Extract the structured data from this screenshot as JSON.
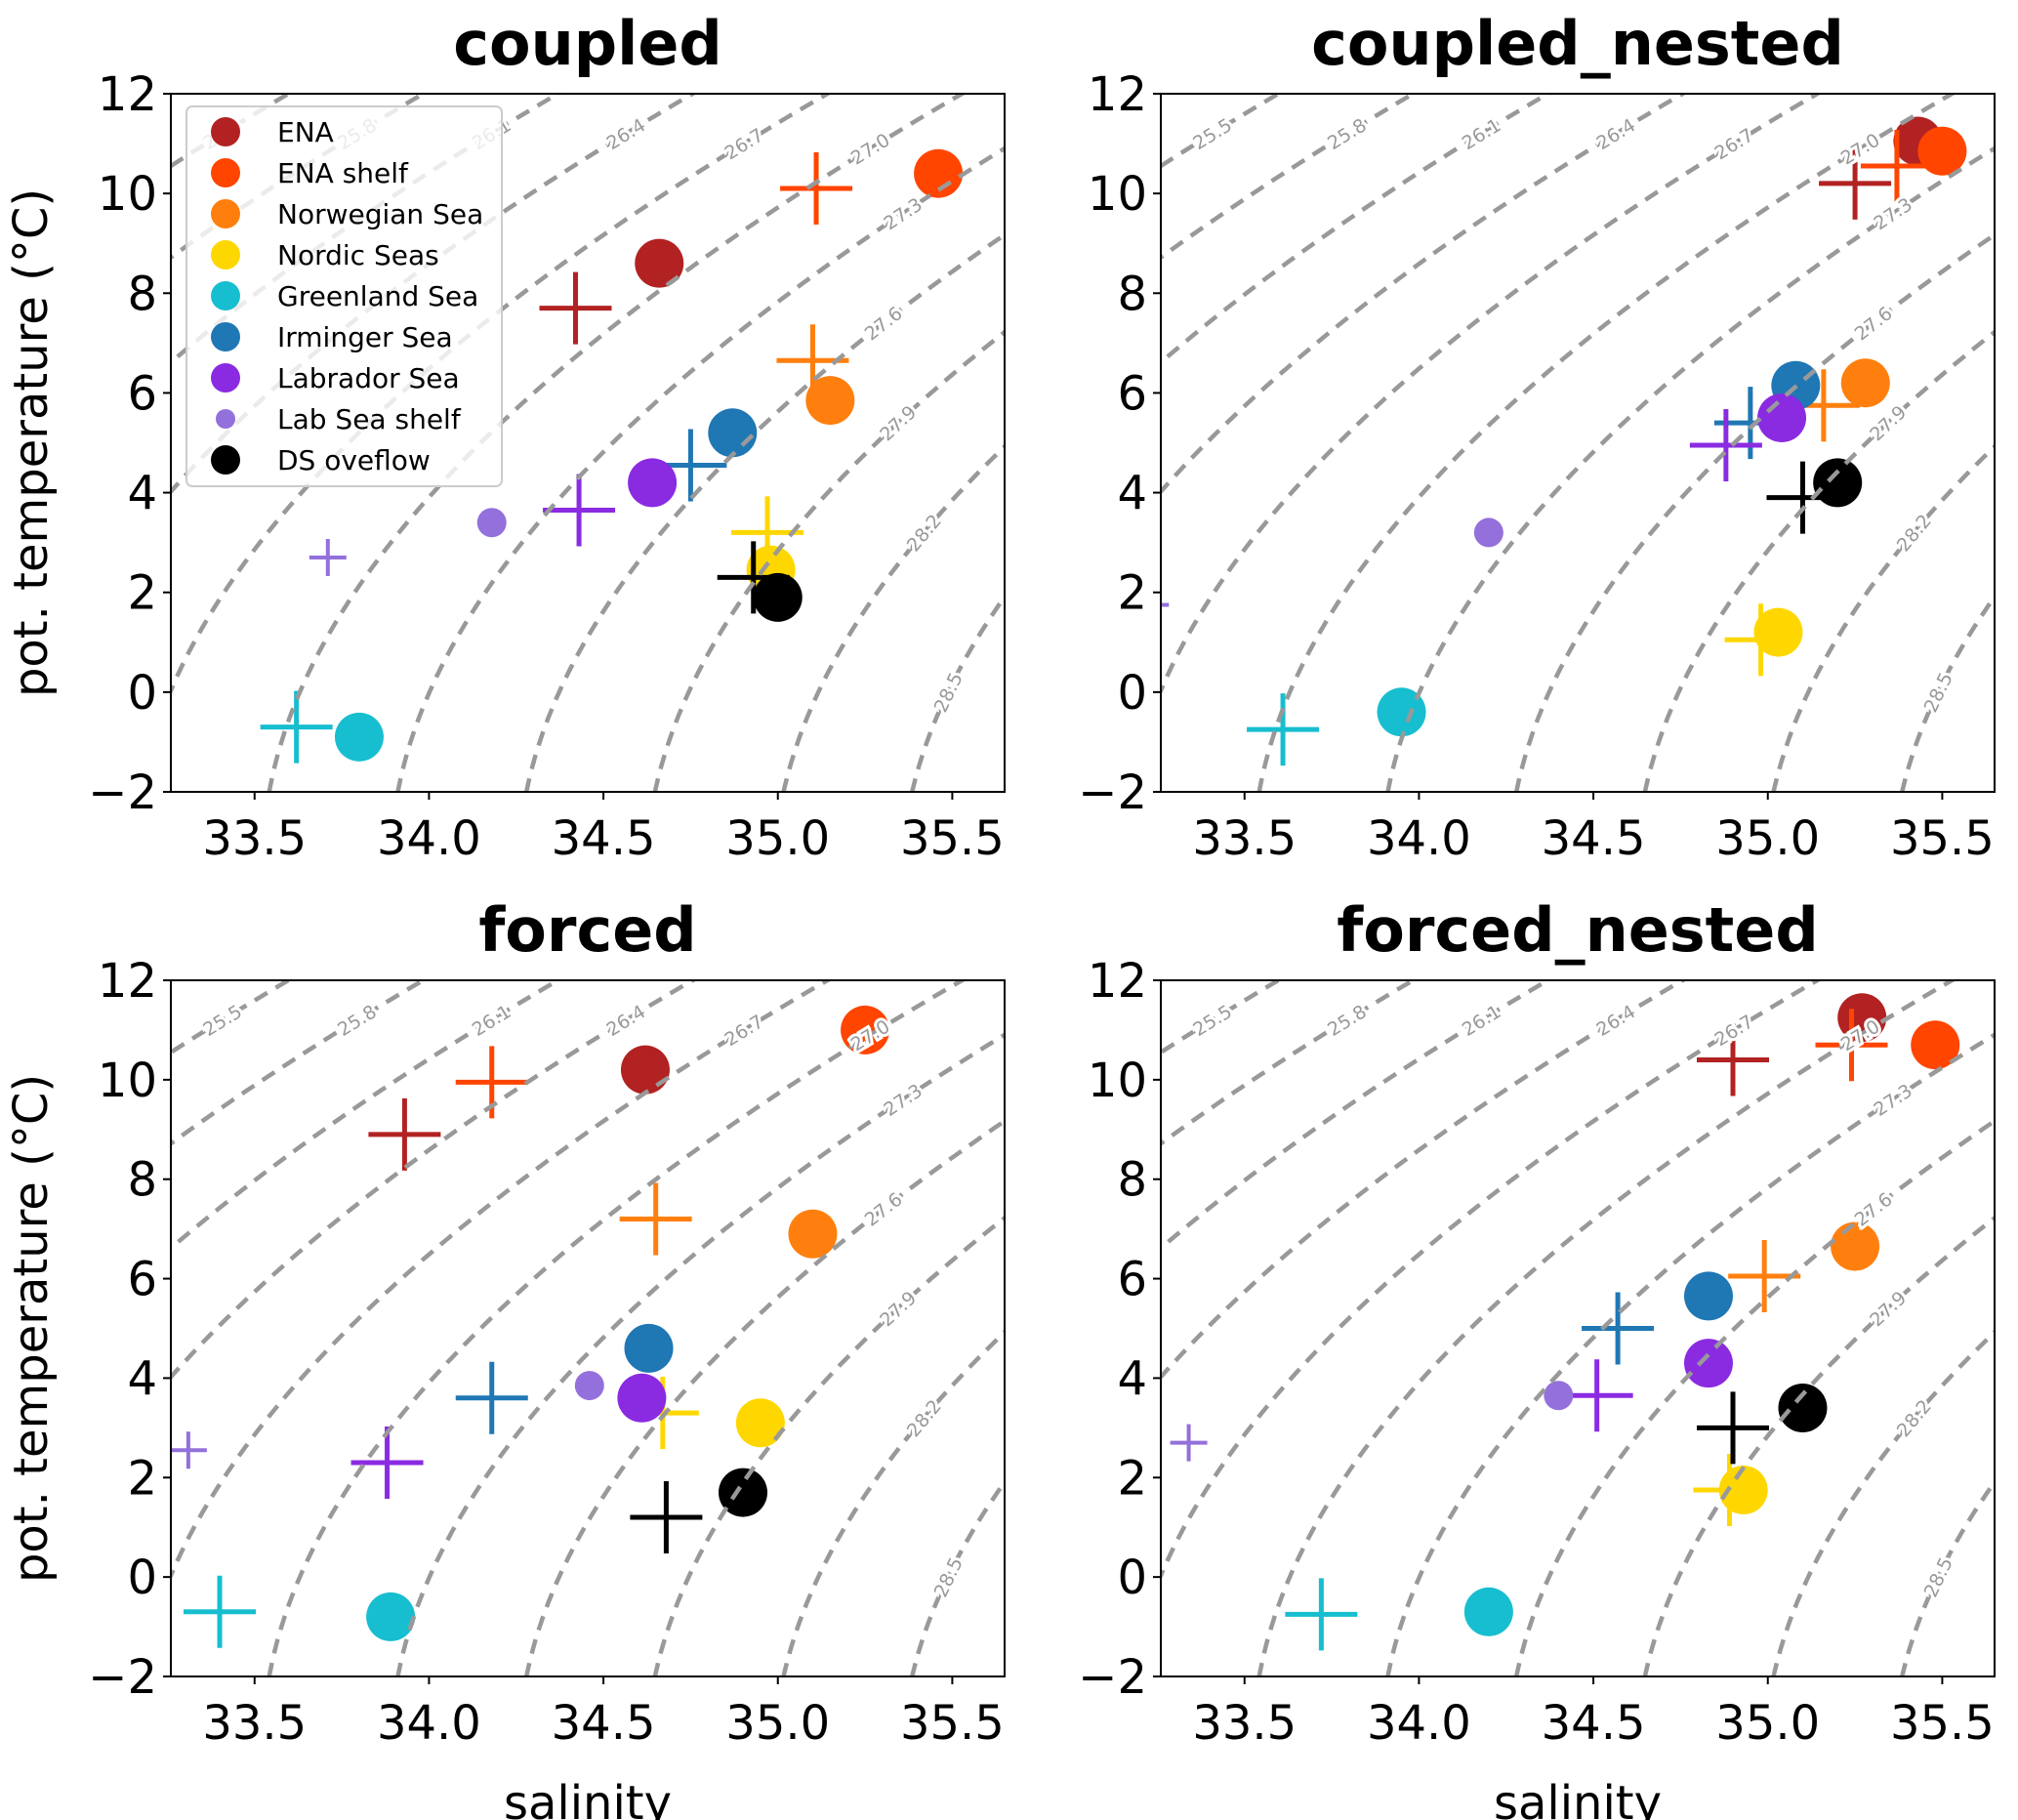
{
  "chart_data": [
    {
      "type": "scatter",
      "title": "coupled",
      "xlabel": "",
      "ylabel": "pot. temperature (°C)",
      "xlim": [
        33.26,
        35.65
      ],
      "ylim": [
        -2,
        12
      ],
      "xticks": [
        "33.5",
        "34.0",
        "34.5",
        "35.0",
        "35.5"
      ],
      "yticks": [
        "−2",
        "0",
        "2",
        "4",
        "6",
        "8",
        "10",
        "12"
      ],
      "legend": "top-left",
      "circles": [
        [
          34.66,
          8.6
        ],
        [
          35.46,
          10.4
        ],
        [
          35.15,
          5.85
        ],
        [
          34.98,
          2.45
        ],
        [
          33.8,
          -0.9
        ],
        [
          34.87,
          5.2
        ],
        [
          34.64,
          4.2
        ],
        [
          34.18,
          3.4
        ],
        [
          35.0,
          1.9
        ]
      ],
      "crosses": [
        [
          34.42,
          7.7
        ],
        [
          35.11,
          10.1
        ],
        [
          35.1,
          6.65
        ],
        [
          34.97,
          3.2
        ],
        [
          33.62,
          -0.7
        ],
        [
          34.75,
          4.55
        ],
        [
          34.43,
          3.65
        ],
        [
          33.71,
          2.7
        ],
        [
          34.93,
          2.3
        ]
      ]
    },
    {
      "type": "scatter",
      "title": "coupled_nested",
      "xlabel": "",
      "ylabel": "",
      "xlim": [
        33.26,
        35.65
      ],
      "ylim": [
        -2,
        12
      ],
      "xticks": [
        "33.5",
        "34.0",
        "34.5",
        "35.0",
        "35.5"
      ],
      "yticks": [
        "−2",
        "0",
        "2",
        "4",
        "6",
        "8",
        "10",
        "12"
      ],
      "circles": [
        [
          35.43,
          11.05
        ],
        [
          35.5,
          10.85
        ],
        [
          35.28,
          6.2
        ],
        [
          35.03,
          1.2
        ],
        [
          33.95,
          -0.4
        ],
        [
          35.08,
          6.15
        ],
        [
          35.04,
          5.5
        ],
        [
          34.2,
          3.2
        ],
        [
          35.2,
          4.2
        ]
      ],
      "crosses": [
        [
          35.25,
          10.2
        ],
        [
          35.37,
          10.55
        ],
        [
          35.16,
          5.75
        ],
        [
          34.98,
          1.05
        ],
        [
          33.61,
          -0.75
        ],
        [
          34.95,
          5.4
        ],
        [
          34.88,
          4.95
        ],
        [
          33.23,
          1.75
        ],
        [
          35.1,
          3.9
        ]
      ]
    },
    {
      "type": "scatter",
      "title": "forced",
      "xlabel": "salinity",
      "ylabel": "pot. temperature (°C)",
      "xlim": [
        33.26,
        35.65
      ],
      "ylim": [
        -2,
        12
      ],
      "xticks": [
        "33.5",
        "34.0",
        "34.5",
        "35.0",
        "35.5"
      ],
      "yticks": [
        "−2",
        "0",
        "2",
        "4",
        "6",
        "8",
        "10",
        "12"
      ],
      "circles": [
        [
          34.62,
          10.2
        ],
        [
          35.25,
          11.0
        ],
        [
          35.1,
          6.9
        ],
        [
          34.95,
          3.1
        ],
        [
          33.89,
          -0.8
        ],
        [
          34.63,
          4.6
        ],
        [
          34.61,
          3.6
        ],
        [
          34.46,
          3.85
        ],
        [
          34.9,
          1.7
        ]
      ],
      "crosses": [
        [
          33.93,
          8.9
        ],
        [
          34.18,
          9.95
        ],
        [
          34.65,
          7.2
        ],
        [
          34.67,
          3.3
        ],
        [
          33.4,
          -0.7
        ],
        [
          34.18,
          3.6
        ],
        [
          33.88,
          2.3
        ],
        [
          33.31,
          2.55
        ],
        [
          34.68,
          1.2
        ]
      ]
    },
    {
      "type": "scatter",
      "title": "forced_nested",
      "xlabel": "salinity",
      "ylabel": "",
      "xlim": [
        33.26,
        35.65
      ],
      "ylim": [
        -2,
        12
      ],
      "xticks": [
        "33.5",
        "34.0",
        "34.5",
        "35.0",
        "35.5"
      ],
      "yticks": [
        "−2",
        "0",
        "2",
        "4",
        "6",
        "8",
        "10",
        "12"
      ],
      "circles": [
        [
          35.27,
          11.25
        ],
        [
          35.48,
          10.7
        ],
        [
          35.25,
          6.65
        ],
        [
          34.93,
          1.75
        ],
        [
          34.2,
          -0.7
        ],
        [
          34.83,
          5.65
        ],
        [
          34.83,
          4.3
        ],
        [
          34.4,
          3.65
        ],
        [
          35.1,
          3.4
        ]
      ],
      "crosses": [
        [
          34.9,
          10.4
        ],
        [
          35.24,
          10.7
        ],
        [
          34.99,
          6.05
        ],
        [
          34.89,
          1.75
        ],
        [
          33.72,
          -0.75
        ],
        [
          34.57,
          5.0
        ],
        [
          34.51,
          3.65
        ],
        [
          33.34,
          2.7
        ],
        [
          34.9,
          3.0
        ]
      ]
    }
  ],
  "regions": [
    {
      "name": "ENA",
      "color": "#b22222"
    },
    {
      "name": "ENA shelf",
      "color": "#ff4500"
    },
    {
      "name": "Norwegian Sea",
      "color": "#ff7f0e"
    },
    {
      "name": "Nordic Seas",
      "color": "#ffd700"
    },
    {
      "name": "Greenland Sea",
      "color": "#17becf"
    },
    {
      "name": "Irminger Sea",
      "color": "#1f77b4"
    },
    {
      "name": "Labrador Sea",
      "color": "#8a2be2"
    },
    {
      "name": "Lab Sea shelf",
      "color": "#9370db",
      "small": true
    },
    {
      "name": "DS oveflow",
      "color": "#000000"
    }
  ],
  "contour_levels": [
    25.5,
    25.8,
    26.1,
    26.4,
    26.7,
    27.0,
    27.3,
    27.6,
    27.9,
    28.2,
    28.5
  ],
  "contour_color": "#999999"
}
